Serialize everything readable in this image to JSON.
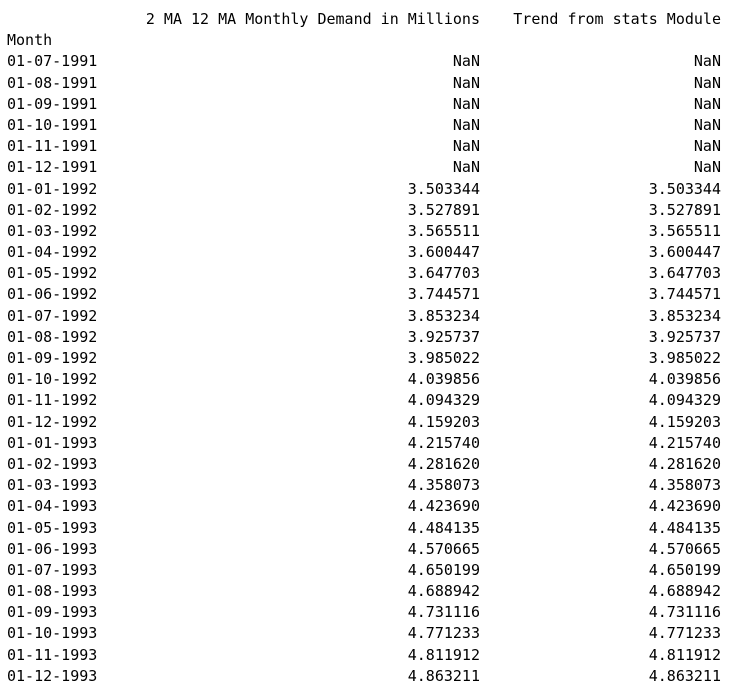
{
  "table": {
    "columns": {
      "ma_header": "2 MA 12 MA Monthly Demand in Millions",
      "trend_header": "Trend from stats Module"
    },
    "index_name": "Month",
    "rows": [
      {
        "month": "01-07-1991",
        "ma": "NaN",
        "trend": "NaN"
      },
      {
        "month": "01-08-1991",
        "ma": "NaN",
        "trend": "NaN"
      },
      {
        "month": "01-09-1991",
        "ma": "NaN",
        "trend": "NaN"
      },
      {
        "month": "01-10-1991",
        "ma": "NaN",
        "trend": "NaN"
      },
      {
        "month": "01-11-1991",
        "ma": "NaN",
        "trend": "NaN"
      },
      {
        "month": "01-12-1991",
        "ma": "NaN",
        "trend": "NaN"
      },
      {
        "month": "01-01-1992",
        "ma": "3.503344",
        "trend": "3.503344"
      },
      {
        "month": "01-02-1992",
        "ma": "3.527891",
        "trend": "3.527891"
      },
      {
        "month": "01-03-1992",
        "ma": "3.565511",
        "trend": "3.565511"
      },
      {
        "month": "01-04-1992",
        "ma": "3.600447",
        "trend": "3.600447"
      },
      {
        "month": "01-05-1992",
        "ma": "3.647703",
        "trend": "3.647703"
      },
      {
        "month": "01-06-1992",
        "ma": "3.744571",
        "trend": "3.744571"
      },
      {
        "month": "01-07-1992",
        "ma": "3.853234",
        "trend": "3.853234"
      },
      {
        "month": "01-08-1992",
        "ma": "3.925737",
        "trend": "3.925737"
      },
      {
        "month": "01-09-1992",
        "ma": "3.985022",
        "trend": "3.985022"
      },
      {
        "month": "01-10-1992",
        "ma": "4.039856",
        "trend": "4.039856"
      },
      {
        "month": "01-11-1992",
        "ma": "4.094329",
        "trend": "4.094329"
      },
      {
        "month": "01-12-1992",
        "ma": "4.159203",
        "trend": "4.159203"
      },
      {
        "month": "01-01-1993",
        "ma": "4.215740",
        "trend": "4.215740"
      },
      {
        "month": "01-02-1993",
        "ma": "4.281620",
        "trend": "4.281620"
      },
      {
        "month": "01-03-1993",
        "ma": "4.358073",
        "trend": "4.358073"
      },
      {
        "month": "01-04-1993",
        "ma": "4.423690",
        "trend": "4.423690"
      },
      {
        "month": "01-05-1993",
        "ma": "4.484135",
        "trend": "4.484135"
      },
      {
        "month": "01-06-1993",
        "ma": "4.570665",
        "trend": "4.570665"
      },
      {
        "month": "01-07-1993",
        "ma": "4.650199",
        "trend": "4.650199"
      },
      {
        "month": "01-08-1993",
        "ma": "4.688942",
        "trend": "4.688942"
      },
      {
        "month": "01-09-1993",
        "ma": "4.731116",
        "trend": "4.731116"
      },
      {
        "month": "01-10-1993",
        "ma": "4.771233",
        "trend": "4.771233"
      },
      {
        "month": "01-11-1993",
        "ma": "4.811912",
        "trend": "4.811912"
      },
      {
        "month": "01-12-1993",
        "ma": "4.863211",
        "trend": "4.863211"
      }
    ]
  }
}
